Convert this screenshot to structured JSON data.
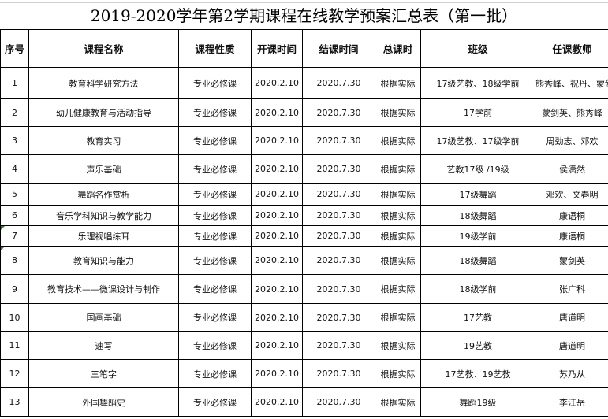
{
  "title": "2019-2020学年第2学期课程在线教学预案汇总表（第一批）",
  "headers": [
    "序号",
    "课程名称",
    "课程性质",
    "开课时间",
    "结课时间",
    "总课时",
    "班级",
    "任课教师"
  ],
  "rows": [
    [
      "1",
      "教育科学研究方法",
      "专业必修课",
      "2020.2.10",
      "2020.7.30",
      "根据实际",
      "17级艺教、18级学前",
      "熊秀峰、祝丹、蒙剑英"
    ],
    [
      "2",
      "幼儿健康教育与活动指导",
      "专业必修课",
      "2020.2.10",
      "2020.7.30",
      "根据实际",
      "17学前",
      "蒙剑英、熊秀峰"
    ],
    [
      "3",
      "教育实习",
      "专业必修课",
      "2020.2.10",
      "2020.7.30",
      "根据实际",
      "17级艺教、17级学前",
      "周劲志、邓欢"
    ],
    [
      "4",
      "声乐基础",
      "专业必修课",
      "2020.2.10",
      "2020.7.30",
      "根据实际",
      "艺教17级 /19级",
      "侯潇然"
    ],
    [
      "5",
      "舞蹈名作赏析",
      "专业必修课",
      "2020.2.10",
      "2020.7.30",
      "根据实际",
      "17级舞蹈",
      "邓欢、文春明"
    ],
    [
      "6",
      "音乐学科知识与教学能力",
      "专业必修课",
      "2020.2.10",
      "2020.7.30",
      "根据实际",
      "18级舞蹈",
      "康语桐"
    ],
    [
      "7",
      "乐理视唱练耳",
      "专业必修课",
      "2020.2.10",
      "2020.7.30",
      "根据实际",
      "19级学前",
      "康语桐"
    ],
    [
      "8",
      "教育知识与能力",
      "专业必修课",
      "2020.2.10",
      "2020.7.30",
      "根据实际",
      "18级舞蹈",
      "蒙剑英"
    ],
    [
      "9",
      "教育技术——微课设计与制作",
      "专业必修课",
      "2020.2.10",
      "2020.7.30",
      "根据实际",
      "18级学前",
      "张广科"
    ],
    [
      "10",
      "国画基础",
      "专业必修课",
      "2020.2.10",
      "2020.7.30",
      "根据实际",
      "17艺教",
      "唐道明"
    ],
    [
      "11",
      "速写",
      "专业必修课",
      "2020.2.10",
      "2020.7.30",
      "根据实际",
      "19艺教",
      "唐道明"
    ],
    [
      "12",
      "三笔字",
      "专业必修课",
      "2020.2.10",
      "2020.7.30",
      "根据实际",
      "17艺教、19艺教",
      "苏乃从"
    ],
    [
      "13",
      "外国舞蹈史",
      "专业必修课",
      "2020.2.10",
      "2020.7.30",
      "根据实际",
      "舞蹈19级",
      "李江岳"
    ]
  ]
}
